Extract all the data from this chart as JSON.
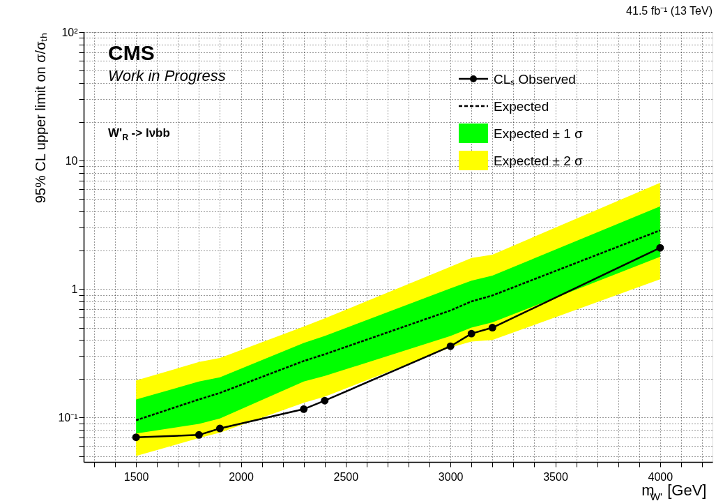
{
  "chart_data": {
    "type": "line",
    "title": "41.5 fb⁻¹ (13 TeV)",
    "xlabel": "m$_{W'}$ [GeV]",
    "ylabel": "95% CL upper limit on σ/σₜₕ",
    "annotations": [
      "CMS",
      "Work in Progress",
      "W'$_{R}$ -> lνbb"
    ],
    "x": [
      1500,
      1800,
      1900,
      2300,
      2400,
      3000,
      3100,
      3200,
      4000
    ],
    "series": [
      {
        "name": "CLₛ Observed",
        "type": "line",
        "color": "#000000",
        "marker": "circle",
        "line_style": "solid",
        "values": [
          0.07,
          0.073,
          0.082,
          0.116,
          0.135,
          0.358,
          0.449,
          0.5,
          2.09
        ]
      },
      {
        "name": "Expected",
        "type": "line",
        "color": "#000000",
        "marker": "none",
        "line_style": "dashed",
        "values": [
          0.095,
          0.138,
          0.155,
          0.275,
          0.31,
          0.68,
          0.8,
          0.89,
          2.86
        ]
      },
      {
        "name": "Expected ± 1 σ",
        "type": "line",
        "color": "#00ff00",
        "values": [
          null,
          null,
          null,
          null,
          null,
          null,
          null,
          null,
          null
        ],
        "lower": [
          0.075,
          0.089,
          0.098,
          0.19,
          0.21,
          0.43,
          0.5,
          0.55,
          1.78
        ],
        "upper": [
          0.138,
          0.19,
          0.205,
          0.38,
          0.43,
          1.01,
          1.16,
          1.27,
          4.4
        ]
      },
      {
        "name": "Expected ± 2 σ",
        "type": "line",
        "color": "#ffff00",
        "values": [
          null,
          null,
          null,
          null,
          null,
          null,
          null,
          null,
          null
        ],
        "lower": [
          0.05,
          0.069,
          0.076,
          0.13,
          0.145,
          0.35,
          0.39,
          0.4,
          1.19
        ],
        "upper": [
          0.194,
          0.27,
          0.29,
          0.51,
          0.59,
          1.49,
          1.74,
          1.85,
          6.7
        ]
      }
    ],
    "log": "y",
    "xlim": [
      1250,
      4250
    ],
    "xticks": [
      {
        "value": 1300,
        "label": null
      },
      {
        "value": 1400,
        "label": null
      },
      1500,
      {
        "value": 1600,
        "label": null
      },
      {
        "value": 1700,
        "label": null
      },
      {
        "value": 1800,
        "label": null
      },
      {
        "value": 1900,
        "label": null
      },
      2000,
      {
        "value": 2100,
        "label": null
      },
      {
        "value": 2200,
        "label": null
      },
      {
        "value": 2300,
        "label": null
      },
      {
        "value": 2400,
        "label": null
      },
      2500,
      {
        "value": 2600,
        "label": null
      },
      {
        "value": 2700,
        "label": null
      },
      {
        "value": 2800,
        "label": null
      },
      {
        "value": 2900,
        "label": null
      },
      3000,
      {
        "value": 3100,
        "label": null
      },
      {
        "value": 3200,
        "label": null
      },
      {
        "value": 3300,
        "label": null
      },
      {
        "value": 3400,
        "label": null
      },
      3500,
      {
        "value": 3600,
        "label": null
      },
      {
        "value": 3700,
        "label": null
      },
      {
        "value": 3800,
        "label": null
      },
      {
        "value": 3900,
        "label": null
      },
      4000,
      {
        "value": 4100,
        "label": null
      },
      {
        "value": 4200,
        "label": null
      }
    ],
    "ylim": [
      0.045,
      100
    ],
    "yticks": [
      {
        "value": 0.05,
        "label": null
      },
      {
        "value": 0.06,
        "label": null
      },
      {
        "value": 0.07,
        "label": null
      },
      {
        "value": 0.08,
        "label": null
      },
      {
        "value": 0.09,
        "label": null
      },
      {
        "value": 0.1,
        "label": "10⁻¹"
      },
      {
        "value": 0.2,
        "label": null
      },
      {
        "value": 0.3,
        "label": null
      },
      {
        "value": 0.4,
        "label": null
      },
      {
        "value": 0.5,
        "label": null
      },
      {
        "value": 0.6,
        "label": null
      },
      {
        "value": 0.7,
        "label": null
      },
      {
        "value": 0.8,
        "label": null
      },
      {
        "value": 0.9,
        "label": null
      },
      1,
      {
        "value": 2,
        "label": null
      },
      {
        "value": 3,
        "label": null
      },
      {
        "value": 4,
        "label": null
      },
      {
        "value": 5,
        "label": null
      },
      {
        "value": 6,
        "label": null
      },
      {
        "value": 7,
        "label": null
      },
      {
        "value": 8,
        "label": null
      },
      {
        "value": 9,
        "label": null
      },
      10,
      {
        "value": 20,
        "label": null
      },
      {
        "value": 30,
        "label": null
      },
      {
        "value": 40,
        "label": null
      },
      {
        "value": 50,
        "label": null
      },
      {
        "value": 60,
        "label": null
      },
      {
        "value": 70,
        "label": null
      },
      {
        "value": 80,
        "label": null
      },
      {
        "value": 90,
        "label": null
      },
      {
        "value": 100,
        "label": "10²"
      }
    ],
    "grid": true,
    "legend": "top right"
  }
}
